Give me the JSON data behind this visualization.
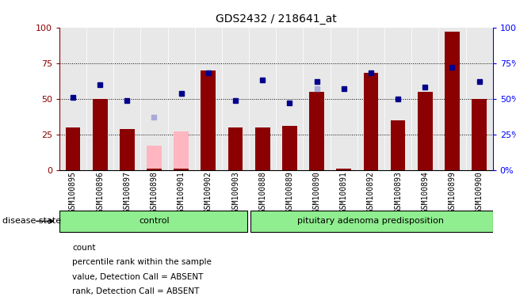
{
  "title": "GDS2432 / 218641_at",
  "samples": [
    "GSM100895",
    "GSM100896",
    "GSM100897",
    "GSM100898",
    "GSM100901",
    "GSM100902",
    "GSM100903",
    "GSM100888",
    "GSM100889",
    "GSM100890",
    "GSM100891",
    "GSM100892",
    "GSM100893",
    "GSM100894",
    "GSM100899",
    "GSM100900"
  ],
  "count": [
    30,
    50,
    29,
    1,
    1,
    70,
    30,
    30,
    31,
    55,
    1,
    68,
    35,
    55,
    97,
    50
  ],
  "percentile_rank": [
    51,
    60,
    49,
    0,
    54,
    68,
    49,
    63,
    47,
    62,
    57,
    68,
    50,
    58,
    72,
    62
  ],
  "value_absent": [
    30,
    0,
    0,
    17,
    27,
    0,
    0,
    0,
    0,
    52,
    0,
    0,
    0,
    0,
    0,
    0
  ],
  "rank_absent": [
    0,
    0,
    0,
    37,
    54,
    0,
    0,
    0,
    0,
    57,
    0,
    0,
    0,
    0,
    0,
    0
  ],
  "control_count": 7,
  "ylim": [
    0,
    100
  ],
  "bar_width": 0.55,
  "bar_color_red": "#8B0000",
  "bar_color_pink": "#FFB6C1",
  "square_color_blue": "#00008B",
  "square_color_lightblue": "#AAAADD",
  "group_labels": [
    "control",
    "pituitary adenoma predisposition"
  ],
  "disease_state_label": "disease state",
  "legend_labels": [
    "count",
    "percentile rank within the sample",
    "value, Detection Call = ABSENT",
    "rank, Detection Call = ABSENT"
  ],
  "legend_colors": [
    "#8B0000",
    "#00008B",
    "#FFB6C1",
    "#AAAADD"
  ],
  "yticks": [
    0,
    25,
    50,
    75,
    100
  ],
  "green_color": "#90EE90",
  "gray_color": "#D0D0D0",
  "title_fontsize": 10,
  "label_fontsize": 7,
  "legend_fontsize": 7.5
}
